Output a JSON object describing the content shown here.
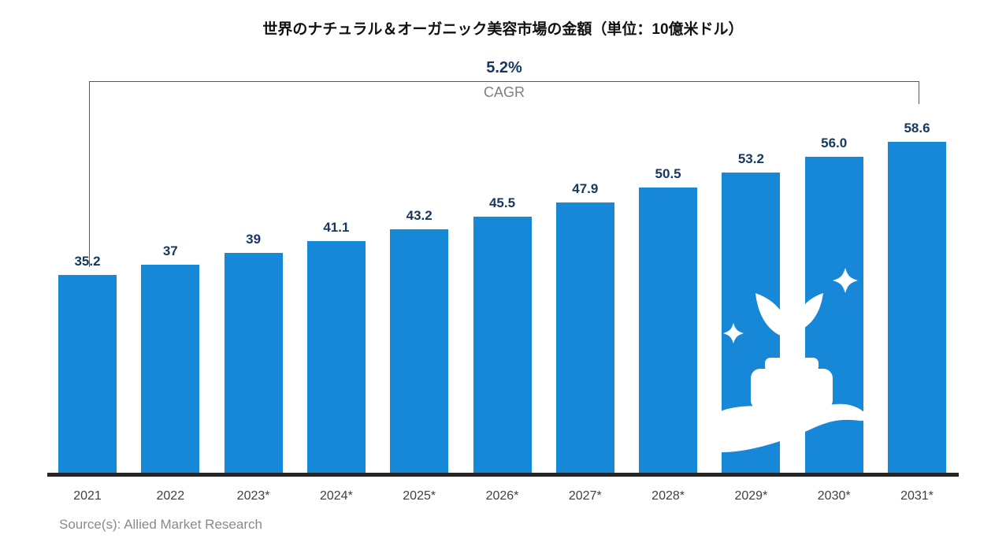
{
  "chart_data": {
    "type": "bar",
    "title": "世界のナチュラル＆オーガニック美容市場の金額（単位：10億米ドル）",
    "categories": [
      "2021",
      "2022",
      "2023*",
      "2024*",
      "2025*",
      "2026*",
      "2027*",
      "2028*",
      "2029*",
      "2030*",
      "2031*"
    ],
    "values": [
      35.2,
      37,
      39,
      41.1,
      43.2,
      45.5,
      47.9,
      50.5,
      53.2,
      56.0,
      58.6
    ],
    "value_labels": [
      "35.2",
      "37",
      "39",
      "41.1",
      "43.2",
      "45.5",
      "47.9",
      "50.5",
      "53.2",
      "56.0",
      "58.6"
    ],
    "xlabel": "",
    "ylabel": "",
    "ylim": [
      0,
      62
    ],
    "grid": false,
    "legend": "none",
    "bar_color": "#1787d8",
    "value_label_color": "#17375e"
  },
  "annotation": {
    "cagr_value": "5.2%",
    "cagr_label": "CAGR"
  },
  "source": {
    "text": "Source(s): Allied Market Research"
  },
  "icons": {
    "overlay": "hand-holding-organic-cosmetic-icon",
    "overlay_color": "#ffffff"
  },
  "colors": {
    "background": "#ffffff",
    "axis_line": "#262626",
    "bracket_line": "#595959",
    "tick_label": "#404040",
    "cagr_label_gray": "#7f7f7f",
    "source_text": "#8a8a8a"
  }
}
